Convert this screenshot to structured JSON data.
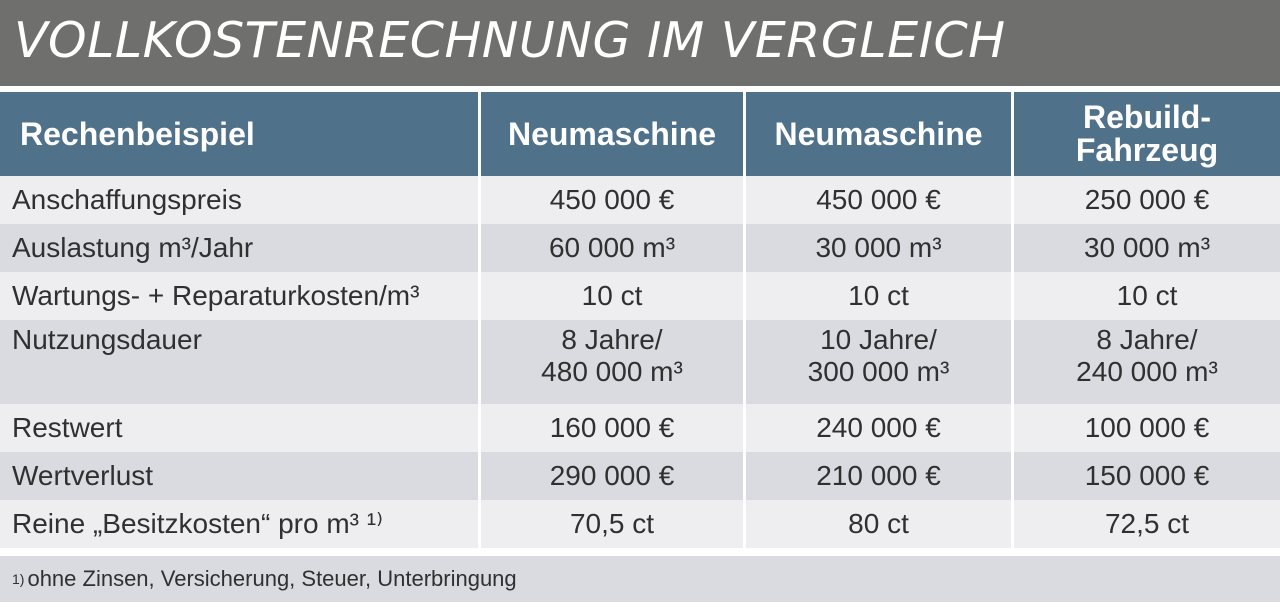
{
  "title": "VOLLKOSTENRECHNUNG IM VERGLEICH",
  "header": [
    "Rechenbeispiel",
    "Neumaschine",
    "Neumaschine",
    "Rebuild-\nFahrzeug"
  ],
  "rows": [
    [
      "Anschaffungspreis",
      "450 000 €",
      "450 000 €",
      "250 000 €"
    ],
    [
      "Auslastung m³/Jahr",
      "60 000 m³",
      "30 000 m³",
      "30 000 m³"
    ],
    [
      "Wartungs- + Reparaturkosten/m³",
      "10 ct",
      "10 ct",
      "10 ct"
    ],
    [
      "Nutzungsdauer",
      "8 Jahre/\n480 000 m³",
      "10 Jahre/\n300 000 m³",
      "8 Jahre/\n240 000 m³"
    ],
    [
      "Restwert",
      "160 000 €",
      "240 000 €",
      "100 000 €"
    ],
    [
      "Wertverlust",
      "290 000 €",
      "210 000 €",
      "150 000 €"
    ],
    [
      "Reine „Besitzkosten“ pro m³ ¹⁾",
      "70,5 ct",
      "80 ct",
      "72,5 ct"
    ]
  ],
  "footnote": {
    "marker": "1)",
    "text": "ohne Zinsen, Versicherung, Steuer, Unterbringung"
  }
}
